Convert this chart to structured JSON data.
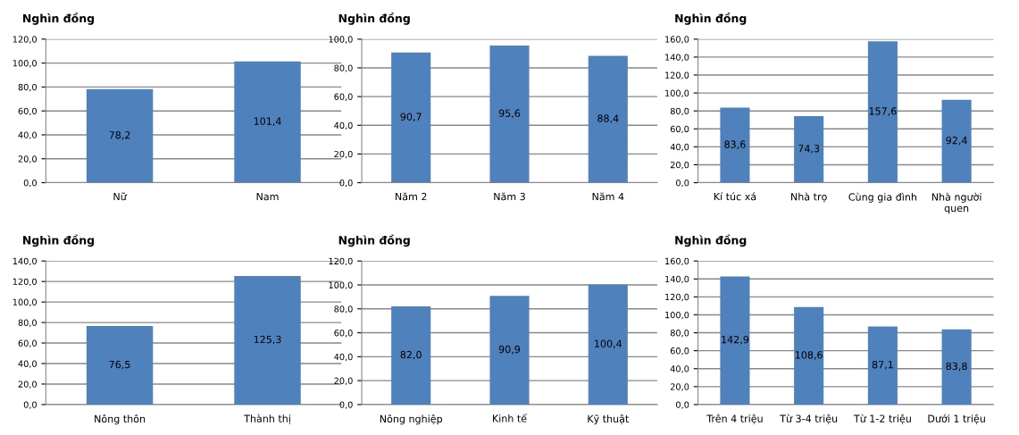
{
  "chart_data": [
    {
      "type": "bar",
      "ylabel": "Nghìn đồng",
      "categories": [
        "Nữ",
        "Nam"
      ],
      "values": [
        78.2,
        101.4
      ],
      "value_labels": [
        "78,2",
        "101,4"
      ],
      "color": "#4f81bd",
      "ylim": [
        0,
        120
      ],
      "yticks": [
        {
          "value": 0,
          "label": "0,0"
        },
        {
          "value": 20,
          "label": "20,0"
        },
        {
          "value": 40,
          "label": "40,0"
        },
        {
          "value": 60,
          "label": "60,0"
        },
        {
          "value": 80,
          "label": "80,0"
        },
        {
          "value": 100,
          "label": "100,0"
        },
        {
          "value": 120,
          "label": "120,0"
        }
      ],
      "grid": "y"
    },
    {
      "type": "bar",
      "ylabel": "Nghìn đồng",
      "categories": [
        "Năm 2",
        "Năm 3",
        "Năm 4"
      ],
      "values": [
        90.7,
        95.6,
        88.4
      ],
      "value_labels": [
        "90,7",
        "95,6",
        "88,4"
      ],
      "color": "#4f81bd",
      "ylim": [
        0,
        100
      ],
      "yticks": [
        {
          "value": 0,
          "label": "0,0"
        },
        {
          "value": 20,
          "label": "20,0"
        },
        {
          "value": 40,
          "label": "40,0"
        },
        {
          "value": 60,
          "label": "60,0"
        },
        {
          "value": 80,
          "label": "80,0"
        },
        {
          "value": 100,
          "label": "100,0"
        }
      ],
      "grid": "y"
    },
    {
      "type": "bar",
      "ylabel": "Nghìn đồng",
      "categories": [
        "Kí túc xá",
        "Nhà trọ",
        "Cùng gia đình",
        "Nhà người\nquen"
      ],
      "values": [
        83.6,
        74.3,
        157.6,
        92.4
      ],
      "value_labels": [
        "83,6",
        "74,3",
        "157,6",
        "92,4"
      ],
      "color": "#4f81bd",
      "ylim": [
        0,
        160
      ],
      "yticks": [
        {
          "value": 0,
          "label": "0,0"
        },
        {
          "value": 20,
          "label": "20,0"
        },
        {
          "value": 40,
          "label": "40,0"
        },
        {
          "value": 60,
          "label": "60,0"
        },
        {
          "value": 80,
          "label": "80,0"
        },
        {
          "value": 100,
          "label": "100,0"
        },
        {
          "value": 120,
          "label": "120,0"
        },
        {
          "value": 140,
          "label": "140,0"
        },
        {
          "value": 160,
          "label": "160,0"
        }
      ],
      "grid": "y"
    },
    {
      "type": "bar",
      "ylabel": "Nghìn đồng",
      "categories": [
        "Nông thôn",
        "Thành thị"
      ],
      "values": [
        76.5,
        125.3
      ],
      "value_labels": [
        "76,5",
        "125,3"
      ],
      "color": "#4f81bd",
      "ylim": [
        0,
        140
      ],
      "yticks": [
        {
          "value": 0,
          "label": "0,0"
        },
        {
          "value": 20,
          "label": "20,0"
        },
        {
          "value": 40,
          "label": "40,0"
        },
        {
          "value": 60,
          "label": "60,0"
        },
        {
          "value": 80,
          "label": "80,0"
        },
        {
          "value": 100,
          "label": "100,0"
        },
        {
          "value": 120,
          "label": "120,0"
        },
        {
          "value": 140,
          "label": "140,0"
        }
      ],
      "grid": "y"
    },
    {
      "type": "bar",
      "ylabel": "Nghìn đồng",
      "categories": [
        "Nông nghiệp",
        "Kinh tế",
        "Kỹ thuật"
      ],
      "values": [
        82.0,
        90.9,
        100.4
      ],
      "value_labels": [
        "82,0",
        "90,9",
        "100,4"
      ],
      "color": "#4f81bd",
      "ylim": [
        0,
        120
      ],
      "yticks": [
        {
          "value": 0,
          "label": "0,0"
        },
        {
          "value": 20,
          "label": "20,0"
        },
        {
          "value": 40,
          "label": "40,0"
        },
        {
          "value": 60,
          "label": "60,0"
        },
        {
          "value": 80,
          "label": "80,0"
        },
        {
          "value": 100,
          "label": "100,0"
        },
        {
          "value": 120,
          "label": "120,0"
        }
      ],
      "grid": "y"
    },
    {
      "type": "bar",
      "ylabel": "Nghìn đồng",
      "categories": [
        "Trên 4 triệu",
        "Từ 3-4 triệu",
        "Từ 1-2 triệu",
        "Dưới 1 triệu"
      ],
      "values": [
        142.9,
        108.6,
        87.1,
        83.8
      ],
      "value_labels": [
        "142,9",
        "108,6",
        "87,1",
        "83,8"
      ],
      "color": "#4f81bd",
      "ylim": [
        0,
        160
      ],
      "yticks": [
        {
          "value": 0,
          "label": "0,0"
        },
        {
          "value": 20,
          "label": "20,0"
        },
        {
          "value": 40,
          "label": "40,0"
        },
        {
          "value": 60,
          "label": "60,0"
        },
        {
          "value": 80,
          "label": "80,0"
        },
        {
          "value": 100,
          "label": "100,0"
        },
        {
          "value": 120,
          "label": "120,0"
        },
        {
          "value": 140,
          "label": "140,0"
        },
        {
          "value": 160,
          "label": "160,0"
        }
      ],
      "grid": "y"
    }
  ]
}
